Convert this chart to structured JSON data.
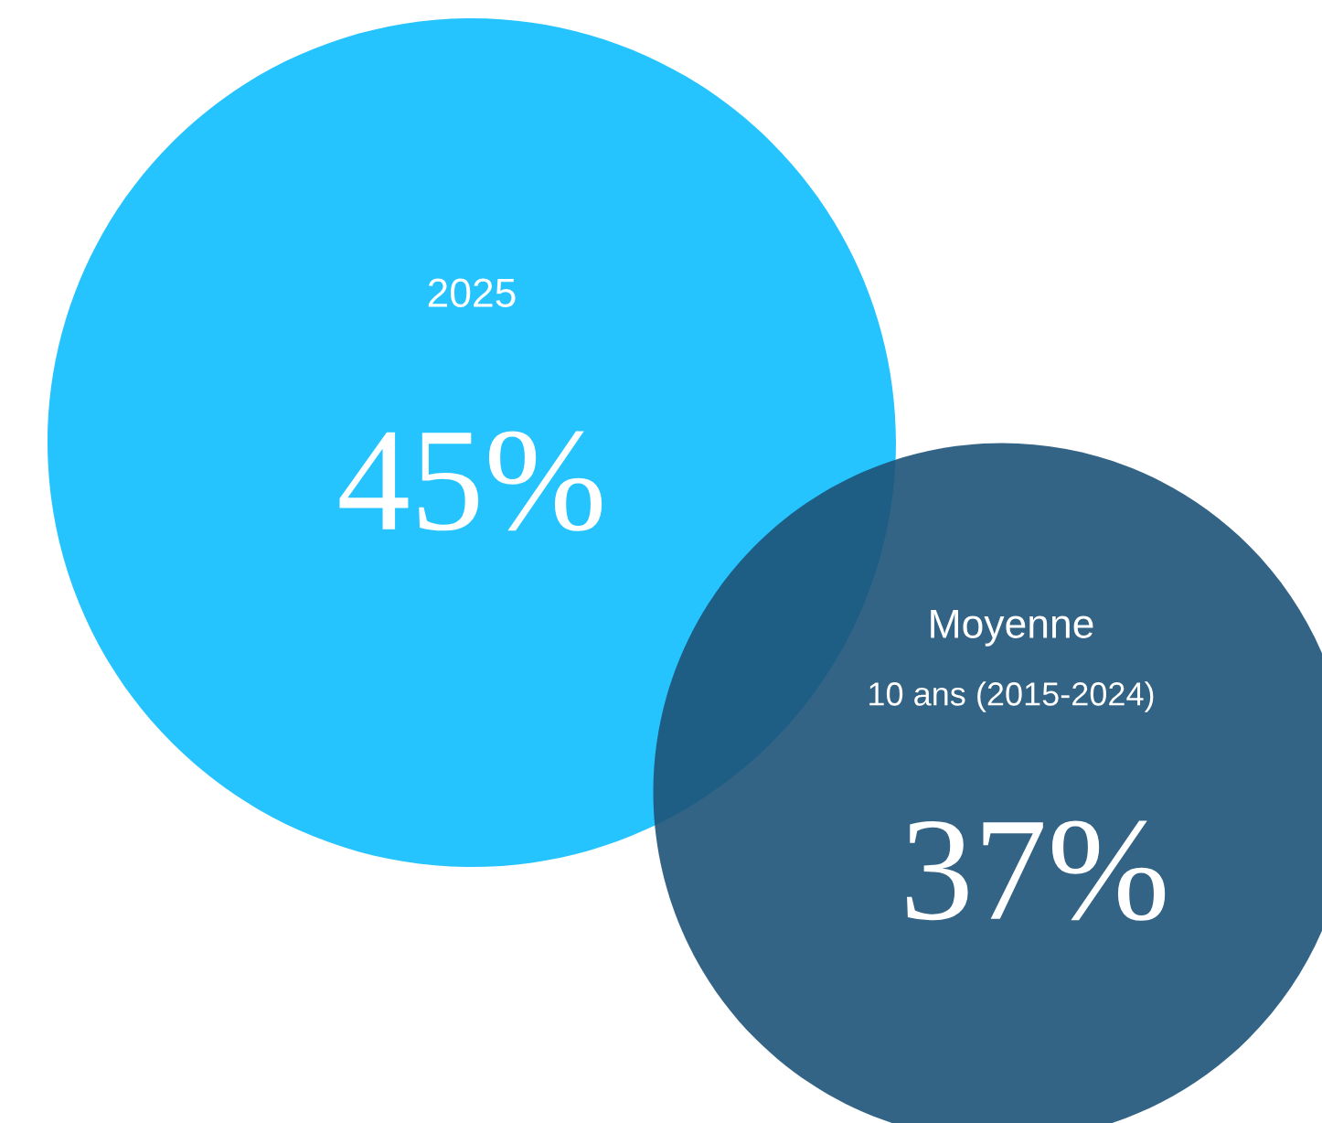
{
  "chart_data": {
    "type": "other",
    "categories": [
      "2025",
      "Moyenne"
    ],
    "values": [
      45,
      37
    ],
    "value_labels": [
      "45%",
      "37%"
    ],
    "colors": [
      "#25c4ff",
      "#1e5378"
    ],
    "annotations": [
      "10 ans (2015-2024)"
    ]
  }
}
